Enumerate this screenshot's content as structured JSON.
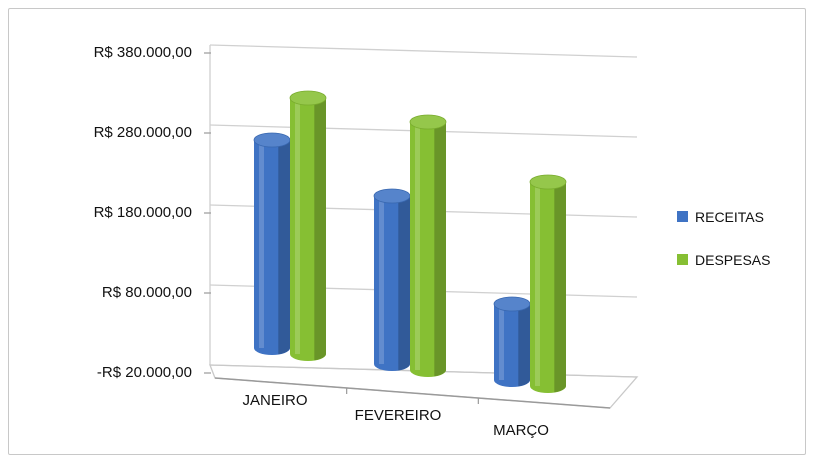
{
  "chart_data": {
    "type": "bar",
    "style": "3d-cylinder",
    "title": "",
    "categories": [
      "JANEIRO",
      "FEVEREIRO",
      "MARÇO"
    ],
    "series": [
      {
        "name": "RECEITAS",
        "color": "#3f73c4",
        "values": [
          250000,
          200000,
          85000
        ]
      },
      {
        "name": "DESPESAS",
        "color": "#86bf33",
        "values": [
          310000,
          300000,
          245000
        ]
      }
    ],
    "ylim": [
      -20000,
      380000
    ],
    "yticks": [
      -20000,
      80000,
      180000,
      280000,
      380000
    ],
    "ytick_labels": [
      "-R$ 20.000,00",
      "R$ 80.000,00",
      "R$ 180.000,00",
      "R$ 280.000,00",
      "R$ 380.000,00"
    ],
    "grid": true,
    "legend": "right"
  }
}
